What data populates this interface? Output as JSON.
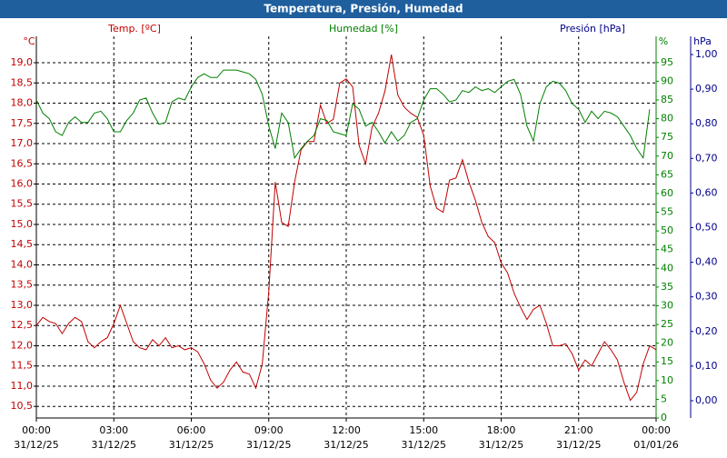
{
  "chart_data": {
    "type": "line",
    "title": "Temperatura, Presión, Humedad",
    "x": [
      0,
      0.25,
      0.5,
      0.75,
      1,
      1.25,
      1.5,
      1.75,
      2,
      2.25,
      2.5,
      2.75,
      3,
      3.25,
      3.5,
      3.75,
      4,
      4.25,
      4.5,
      4.75,
      5,
      5.25,
      5.5,
      5.75,
      6,
      6.25,
      6.5,
      6.75,
      7,
      7.25,
      7.5,
      7.75,
      8,
      8.25,
      8.5,
      8.75,
      9,
      9.25,
      9.5,
      9.75,
      10,
      10.25,
      10.5,
      10.75,
      11,
      11.25,
      11.5,
      11.75,
      12,
      12.25,
      12.5,
      12.75,
      13,
      13.25,
      13.5,
      13.75,
      14,
      14.25,
      14.5,
      14.75,
      15,
      15.25,
      15.5,
      15.75,
      16,
      16.25,
      16.5,
      16.75,
      17,
      17.25,
      17.5,
      17.75,
      18,
      18.25,
      18.5,
      18.75,
      19,
      19.25,
      19.5,
      19.75,
      20,
      20.25,
      20.5,
      20.75,
      21,
      21.25,
      21.5,
      21.75,
      22,
      22.25,
      22.5,
      22.75,
      23,
      23.25,
      23.5,
      23.75,
      24
    ],
    "xlim": [
      0,
      24
    ],
    "xticks": [
      {
        "value": 0,
        "label": "00:00"
      },
      {
        "value": 3,
        "label": "03:00"
      },
      {
        "value": 6,
        "label": "06:00"
      },
      {
        "value": 9,
        "label": "09:00"
      },
      {
        "value": 12,
        "label": "12:00"
      },
      {
        "value": 15,
        "label": "15:00"
      },
      {
        "value": 18,
        "label": "18:00"
      },
      {
        "value": 21,
        "label": "21:00"
      },
      {
        "value": 24,
        "label": "00:00"
      }
    ],
    "xtick_dates": [
      "31/12/25",
      "31/12/25",
      "31/12/25",
      "31/12/25",
      "31/12/25",
      "31/12/25",
      "31/12/25",
      "31/12/25",
      "01/01/26"
    ],
    "ylabel": "°C",
    "ylim": [
      10.213,
      19.652
    ],
    "yticks": [
      {
        "value": 10.5,
        "label": "10,5"
      },
      {
        "value": 11,
        "label": "11,0"
      },
      {
        "value": 11.5,
        "label": "11,5"
      },
      {
        "value": 12,
        "label": "12,0"
      },
      {
        "value": 12.5,
        "label": "12,5"
      },
      {
        "value": 13,
        "label": "13,0"
      },
      {
        "value": 13.5,
        "label": "13,5"
      },
      {
        "value": 14,
        "label": "14,0"
      },
      {
        "value": 14.5,
        "label": "14,5"
      },
      {
        "value": 15,
        "label": "15,0"
      },
      {
        "value": 15.5,
        "label": "15,5"
      },
      {
        "value": 16,
        "label": "16,0"
      },
      {
        "value": 16.5,
        "label": "16,5"
      },
      {
        "value": 17,
        "label": "17,0"
      },
      {
        "value": 17.5,
        "label": "17,5"
      },
      {
        "value": 18,
        "label": "18,0"
      },
      {
        "value": 18.5,
        "label": "18,5"
      },
      {
        "value": 19,
        "label": "19,0"
      }
    ],
    "y2label": "%",
    "y2lim": [
      0,
      102
    ],
    "y2ticks": [
      0,
      5,
      10,
      15,
      20,
      25,
      30,
      35,
      40,
      45,
      50,
      55,
      60,
      65,
      70,
      75,
      80,
      85,
      90,
      95
    ],
    "y3": {
      "name": "Presión [hPa]",
      "label": "hPa",
      "color": "#00008b",
      "lim": [
        -0.05,
        1.0525
      ],
      "ticks": [
        {
          "value": 0,
          "label": "0,00"
        },
        {
          "value": 0.1,
          "label": "0,10"
        },
        {
          "value": 0.2,
          "label": "0,20"
        },
        {
          "value": 0.3,
          "label": "0,30"
        },
        {
          "value": 0.4,
          "label": "0,40"
        },
        {
          "value": 0.5,
          "label": "0,50"
        },
        {
          "value": 0.6,
          "label": "0,60"
        },
        {
          "value": 0.7,
          "label": "0,70"
        },
        {
          "value": 0.8,
          "label": "0,80"
        },
        {
          "value": 0.9,
          "label": "0,90"
        },
        {
          "value": 1,
          "label": "1,00"
        }
      ]
    },
    "grid": true,
    "series": [
      {
        "name": "Temp. [ºC]",
        "color": "#c00000",
        "axis": "y",
        "values": [
          12.5,
          12.7,
          12.6,
          12.55,
          12.3,
          12.55,
          12.7,
          12.6,
          12.1,
          11.95,
          12.1,
          12.2,
          12.55,
          13.0,
          12.55,
          12.1,
          11.95,
          11.9,
          12.15,
          12.0,
          12.2,
          11.95,
          12.0,
          11.9,
          11.95,
          11.85,
          11.55,
          11.15,
          10.95,
          11.1,
          11.4,
          11.6,
          11.35,
          11.3,
          10.95,
          11.55,
          13.35,
          16.05,
          15.05,
          14.95,
          16.05,
          16.85,
          17.05,
          17.05,
          17.95,
          17.5,
          17.6,
          18.5,
          18.6,
          18.4,
          16.95,
          16.5,
          17.4,
          17.75,
          18.3,
          19.2,
          18.2,
          17.9,
          17.75,
          17.65,
          17.2,
          15.95,
          15.4,
          15.3,
          16.1,
          16.15,
          16.6,
          16.05,
          15.6,
          15.05,
          14.7,
          14.55,
          14.05,
          13.8,
          13.3,
          12.95,
          12.65,
          12.9,
          13.0,
          12.55,
          12.0,
          12.0,
          12.05,
          11.8,
          11.4,
          11.65,
          11.5,
          11.8,
          12.1,
          11.9,
          11.65,
          11.1,
          10.65,
          10.85,
          11.55,
          12.0,
          11.9
        ]
      },
      {
        "name": "Humedad [%]",
        "color": "#008000",
        "axis": "y2",
        "values": [
          85,
          81.5,
          80,
          76.5,
          75.5,
          79,
          80.5,
          79,
          79,
          81.5,
          82,
          80,
          76.5,
          76.5,
          79.5,
          81.5,
          85,
          85.5,
          81.5,
          78.5,
          79,
          84.5,
          85.5,
          85,
          88.5,
          91,
          92,
          91,
          91,
          93,
          93,
          93,
          92.5,
          92,
          90.5,
          86.5,
          78,
          72,
          81.5,
          79,
          69.5,
          72,
          74,
          75.5,
          80,
          79.5,
          76.5,
          76,
          75.5,
          84,
          82.5,
          78,
          79,
          76.5,
          73.5,
          76.5,
          74,
          75.5,
          79,
          80,
          85,
          88,
          88,
          86.5,
          84.5,
          85,
          87.5,
          87,
          88.5,
          87.5,
          88,
          87,
          88.5,
          90,
          90.5,
          86.5,
          78,
          74,
          84,
          88.5,
          90,
          89.5,
          87.5,
          84,
          82.5,
          79,
          82,
          80,
          82,
          81.5,
          80.5,
          78,
          75.5,
          72,
          69.5,
          82.5,
          null
        ]
      }
    ]
  }
}
